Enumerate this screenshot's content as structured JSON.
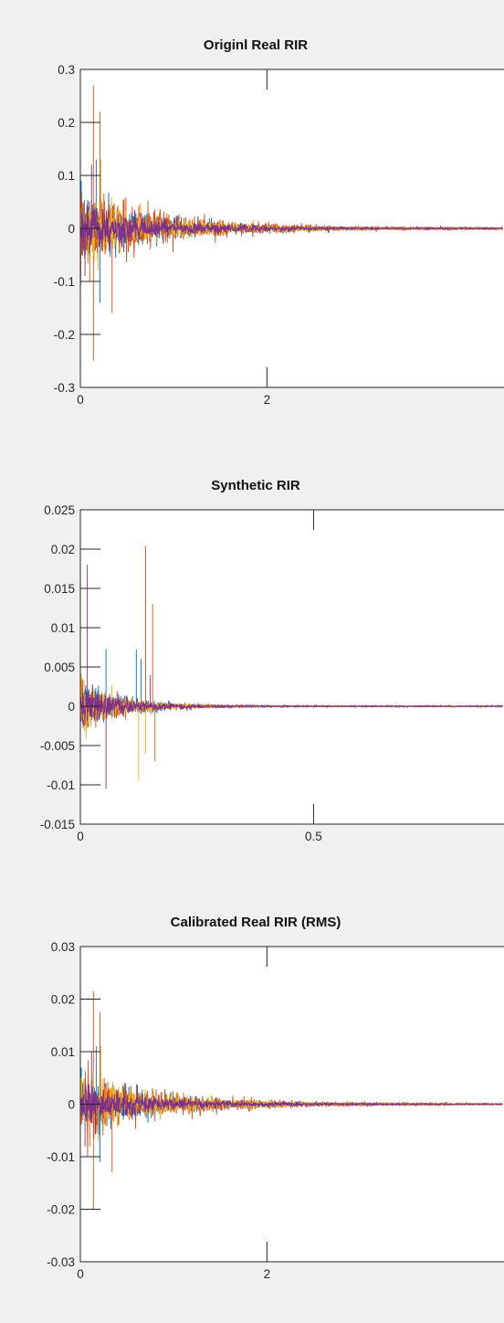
{
  "figure_background": "#f0f0f0",
  "series_colors": [
    "#0072bd",
    "#d95319",
    "#edb120",
    "#7e2f8e"
  ],
  "chart_data": [
    {
      "type": "line",
      "title": "Originl Real RIR",
      "xlabel": "",
      "ylabel": "",
      "ylim": [
        -0.3,
        0.3
      ],
      "yticks": [
        "0.3",
        "0.2",
        "0.1",
        "0",
        "-0.1",
        "-0.2",
        "-0.3"
      ],
      "ytick_values": [
        0.3,
        0.2,
        0.1,
        0,
        -0.1,
        -0.2,
        -0.3
      ],
      "xlim": [
        0,
        4.6
      ],
      "xticks": [
        "0",
        "2"
      ],
      "xtick_values": [
        0,
        2
      ],
      "grid": false,
      "legend": "none",
      "series": [
        {
          "values_summary": "decaying noise, initial peak ~0.09",
          "envelope": 0.03,
          "decay": 1.3,
          "peaks": [
            [
              0.01,
              0.09
            ],
            [
              0.21,
              -0.14
            ],
            [
              0.17,
              0.13
            ]
          ]
        },
        {
          "values_summary": "decaying noise, max ~0.27 near t=0.14",
          "envelope": 0.04,
          "decay": 1.2,
          "peaks": [
            [
              0.14,
              0.27
            ],
            [
              0.14,
              -0.25
            ],
            [
              0.21,
              0.22
            ],
            [
              0.34,
              -0.16
            ],
            [
              0.1,
              -0.1
            ]
          ]
        },
        {
          "values_summary": "decaying noise",
          "envelope": 0.03,
          "decay": 1.3,
          "peaks": [
            [
              0.22,
              0.13
            ],
            [
              0.19,
              -0.08
            ]
          ]
        },
        {
          "values_summary": "decaying noise",
          "envelope": 0.025,
          "decay": 1.4,
          "peaks": [
            [
              0.12,
              0.12
            ],
            [
              0.05,
              -0.09
            ]
          ]
        }
      ]
    },
    {
      "type": "line",
      "title": "Synthetic RIR",
      "xlabel": "",
      "ylabel": "",
      "ylim": [
        -0.015,
        0.025
      ],
      "yticks": [
        "0.025",
        "0.02",
        "0.015",
        "0.01",
        "0.005",
        "0",
        "-0.005",
        "-0.01",
        "-0.015"
      ],
      "ytick_values": [
        0.025,
        0.02,
        0.015,
        0.01,
        0.005,
        0,
        -0.005,
        -0.01,
        -0.015
      ],
      "xlim": [
        0,
        0.92
      ],
      "xticks": [
        "0",
        "0.5"
      ],
      "xtick_values": [
        0,
        0.5
      ],
      "grid": false,
      "legend": "none",
      "series": [
        {
          "values_summary": "decaying noise",
          "envelope": 0.0018,
          "decay": 2.6,
          "peaks": [
            [
              0.055,
              0.0073
            ],
            [
              0.12,
              0.0072
            ],
            [
              0.13,
              0.006
            ]
          ]
        },
        {
          "values_summary": "decaying noise, max ~0.0205 near t=0.14",
          "envelope": 0.0018,
          "decay": 2.6,
          "peaks": [
            [
              0.14,
              0.0204
            ],
            [
              0.14,
              0.016
            ],
            [
              0.155,
              0.013
            ],
            [
              0.16,
              -0.007
            ]
          ]
        },
        {
          "values_summary": "decaying noise",
          "envelope": 0.0016,
          "decay": 2.6,
          "peaks": [
            [
              0.125,
              -0.0095
            ],
            [
              0.14,
              -0.006
            ]
          ]
        },
        {
          "values_summary": "decaying noise, early spike ~0.018",
          "envelope": 0.0016,
          "decay": 2.6,
          "peaks": [
            [
              0.015,
              0.018
            ],
            [
              0.055,
              -0.0105
            ],
            [
              0.15,
              0.004
            ]
          ]
        }
      ]
    },
    {
      "type": "line",
      "title": "Calibrated Real RIR (RMS)",
      "xlabel": "",
      "ylabel": "",
      "ylim": [
        -0.03,
        0.03
      ],
      "yticks": [
        "0.03",
        "0.02",
        "0.01",
        "0",
        "-0.01",
        "-0.02",
        "-0.03"
      ],
      "ytick_values": [
        0.03,
        0.02,
        0.01,
        0,
        -0.01,
        -0.02,
        -0.03
      ],
      "xlim": [
        0,
        4.6
      ],
      "xticks": [
        "0",
        "2"
      ],
      "xtick_values": [
        0,
        2
      ],
      "grid": false,
      "legend": "none",
      "series": [
        {
          "values_summary": "decaying noise, initial peak ~0.007",
          "envelope": 0.0025,
          "decay": 1.3,
          "peaks": [
            [
              0.01,
              0.007
            ],
            [
              0.21,
              -0.011
            ],
            [
              0.17,
              0.011
            ]
          ]
        },
        {
          "values_summary": "decaying noise, max ~0.022 near t=0.14",
          "envelope": 0.0033,
          "decay": 1.2,
          "peaks": [
            [
              0.14,
              0.0215
            ],
            [
              0.14,
              -0.02
            ],
            [
              0.21,
              0.0175
            ],
            [
              0.34,
              -0.013
            ],
            [
              0.1,
              -0.008
            ]
          ]
        },
        {
          "values_summary": "decaying noise",
          "envelope": 0.0025,
          "decay": 1.3,
          "peaks": [
            [
              0.22,
              0.011
            ],
            [
              0.19,
              -0.007
            ]
          ]
        },
        {
          "values_summary": "decaying noise",
          "envelope": 0.002,
          "decay": 1.4,
          "peaks": [
            [
              0.12,
              0.01
            ],
            [
              0.05,
              -0.008
            ]
          ]
        }
      ]
    }
  ]
}
